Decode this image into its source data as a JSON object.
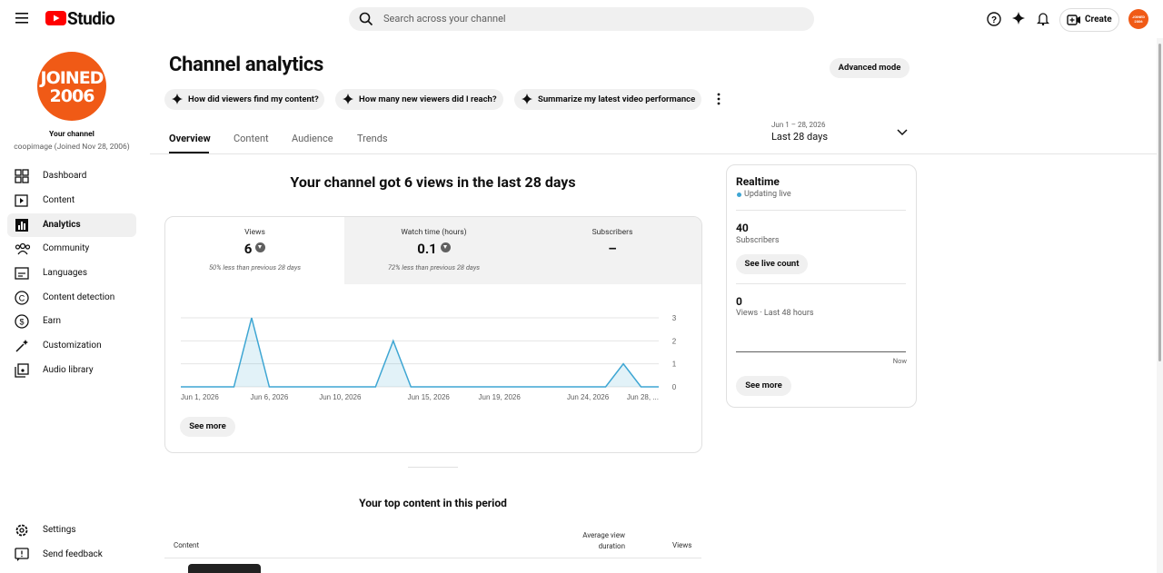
{
  "header": {
    "brand": "Studio",
    "search_placeholder": "Search across your channel",
    "create": "Create"
  },
  "sidebar": {
    "avatar_text": [
      "JOINED",
      "2006"
    ],
    "channel_label": "Your channel",
    "channel_name": "coopimage (Joined Nov 28, 2006)",
    "nav": [
      "Dashboard",
      "Content",
      "Analytics",
      "Community",
      "Languages",
      "Content detection",
      "Earn",
      "Customization",
      "Audio library"
    ],
    "footer": [
      "Settings",
      "Send feedback"
    ]
  },
  "main": {
    "title": "Channel analytics",
    "advanced": "Advanced mode",
    "chips": [
      "How did viewers find my content?",
      "How many new viewers did I reach?",
      "Summarize my latest video performance"
    ],
    "tabs": [
      "Overview",
      "Content",
      "Audience",
      "Trends"
    ],
    "date_range": "Jun 1 – 28, 2026",
    "period": "Last 28 days",
    "headline": "Your channel got 6 views in the last 28 days",
    "metrics": [
      {
        "label": "Views",
        "value": 6,
        "note": "50% less than previous 28 days"
      },
      {
        "label": "Watch time (hours)",
        "value": 0.1,
        "note": "72% less than previous 28 days"
      },
      {
        "label": "Subscribers",
        "value": "–"
      }
    ],
    "see_more": "See more"
  },
  "chart_data": {
    "type": "line",
    "categories": [
      "Jun 1, 2026",
      null,
      null,
      null,
      null,
      "Jun 6, 2026",
      null,
      null,
      null,
      "Jun 10, 2026",
      null,
      null,
      null,
      null,
      "Jun 15, 2026",
      null,
      null,
      null,
      "Jun 19, 2026",
      null,
      null,
      null,
      null,
      "Jun 24, 2026",
      null,
      null,
      null,
      "Jun 28, ..."
    ],
    "values": [
      0,
      0,
      0,
      0,
      3,
      0,
      0,
      0,
      0,
      0,
      0,
      0,
      2,
      0,
      0,
      0,
      0,
      0,
      0,
      0,
      0,
      0,
      0,
      0,
      0,
      1,
      0,
      0
    ],
    "color": "#3ea6d3",
    "ylim": [
      0,
      3
    ],
    "yticks": [
      0,
      1,
      2,
      3
    ],
    "grid": true
  },
  "realtime": {
    "title": "Realtime",
    "status": "Updating live",
    "subscribers": 40,
    "subscribers_label": "Subscribers",
    "live_count": "See live count",
    "views": 0,
    "views_label": "Views · Last 48 hours",
    "now": "Now",
    "see_more": "See more"
  },
  "top_content": {
    "title": "Your top content in this period",
    "columns": [
      "Content",
      "Average view duration",
      "Views"
    ]
  }
}
